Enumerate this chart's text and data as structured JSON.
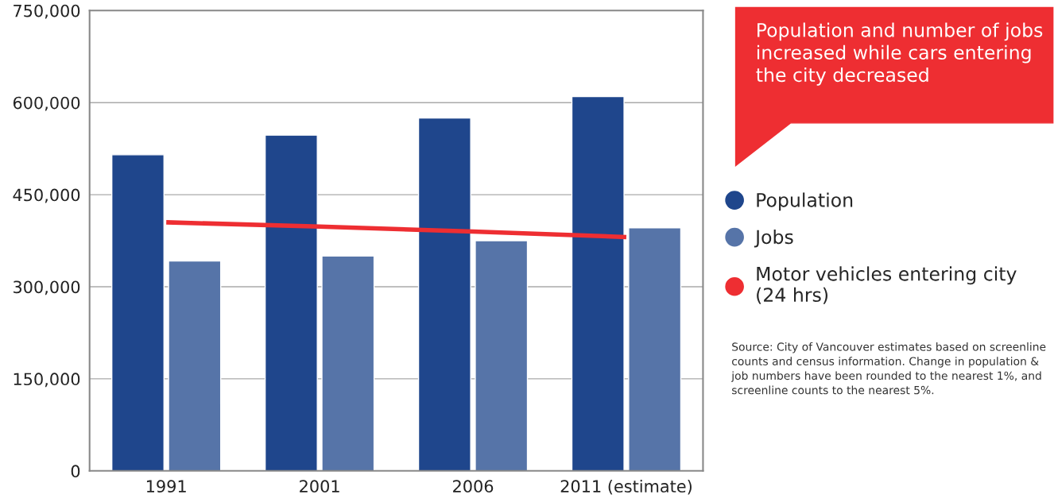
{
  "chart_data": {
    "type": "bar",
    "categories": [
      "1991",
      "2001",
      "2006",
      "2011 (estimate)"
    ],
    "series": [
      {
        "name": "Population",
        "color": "#1f468c",
        "values": [
          515000,
          547000,
          575000,
          610000
        ]
      },
      {
        "name": "Jobs",
        "color": "#5674a8",
        "values": [
          342000,
          350000,
          375000,
          396000
        ]
      },
      {
        "name": "Motor vehicles entering city\n(24 hrs)",
        "color": "#ee2e32",
        "type": "line",
        "values": [
          405000,
          398000,
          390000,
          381000
        ]
      }
    ],
    "ylim": [
      0,
      750000
    ],
    "yticks": [
      {
        "value": 0,
        "label": "0"
      },
      {
        "value": 150000,
        "label": "150,000"
      },
      {
        "value": 300000,
        "label": "300,000"
      },
      {
        "value": 450000,
        "label": "450,000"
      },
      {
        "value": 600000,
        "label": "600,000"
      },
      {
        "value": 750000,
        "label": "750,000"
      }
    ],
    "grid": "y",
    "legend": "right",
    "annotations": [
      "Population and number of jobs increased while cars entering the city decreased",
      "Source: City of Vancouver estimates based on screenline counts and census information. Change in population & job numbers have been rounded to the nearest 1%, and screenline counts to the nearest 5%."
    ]
  }
}
